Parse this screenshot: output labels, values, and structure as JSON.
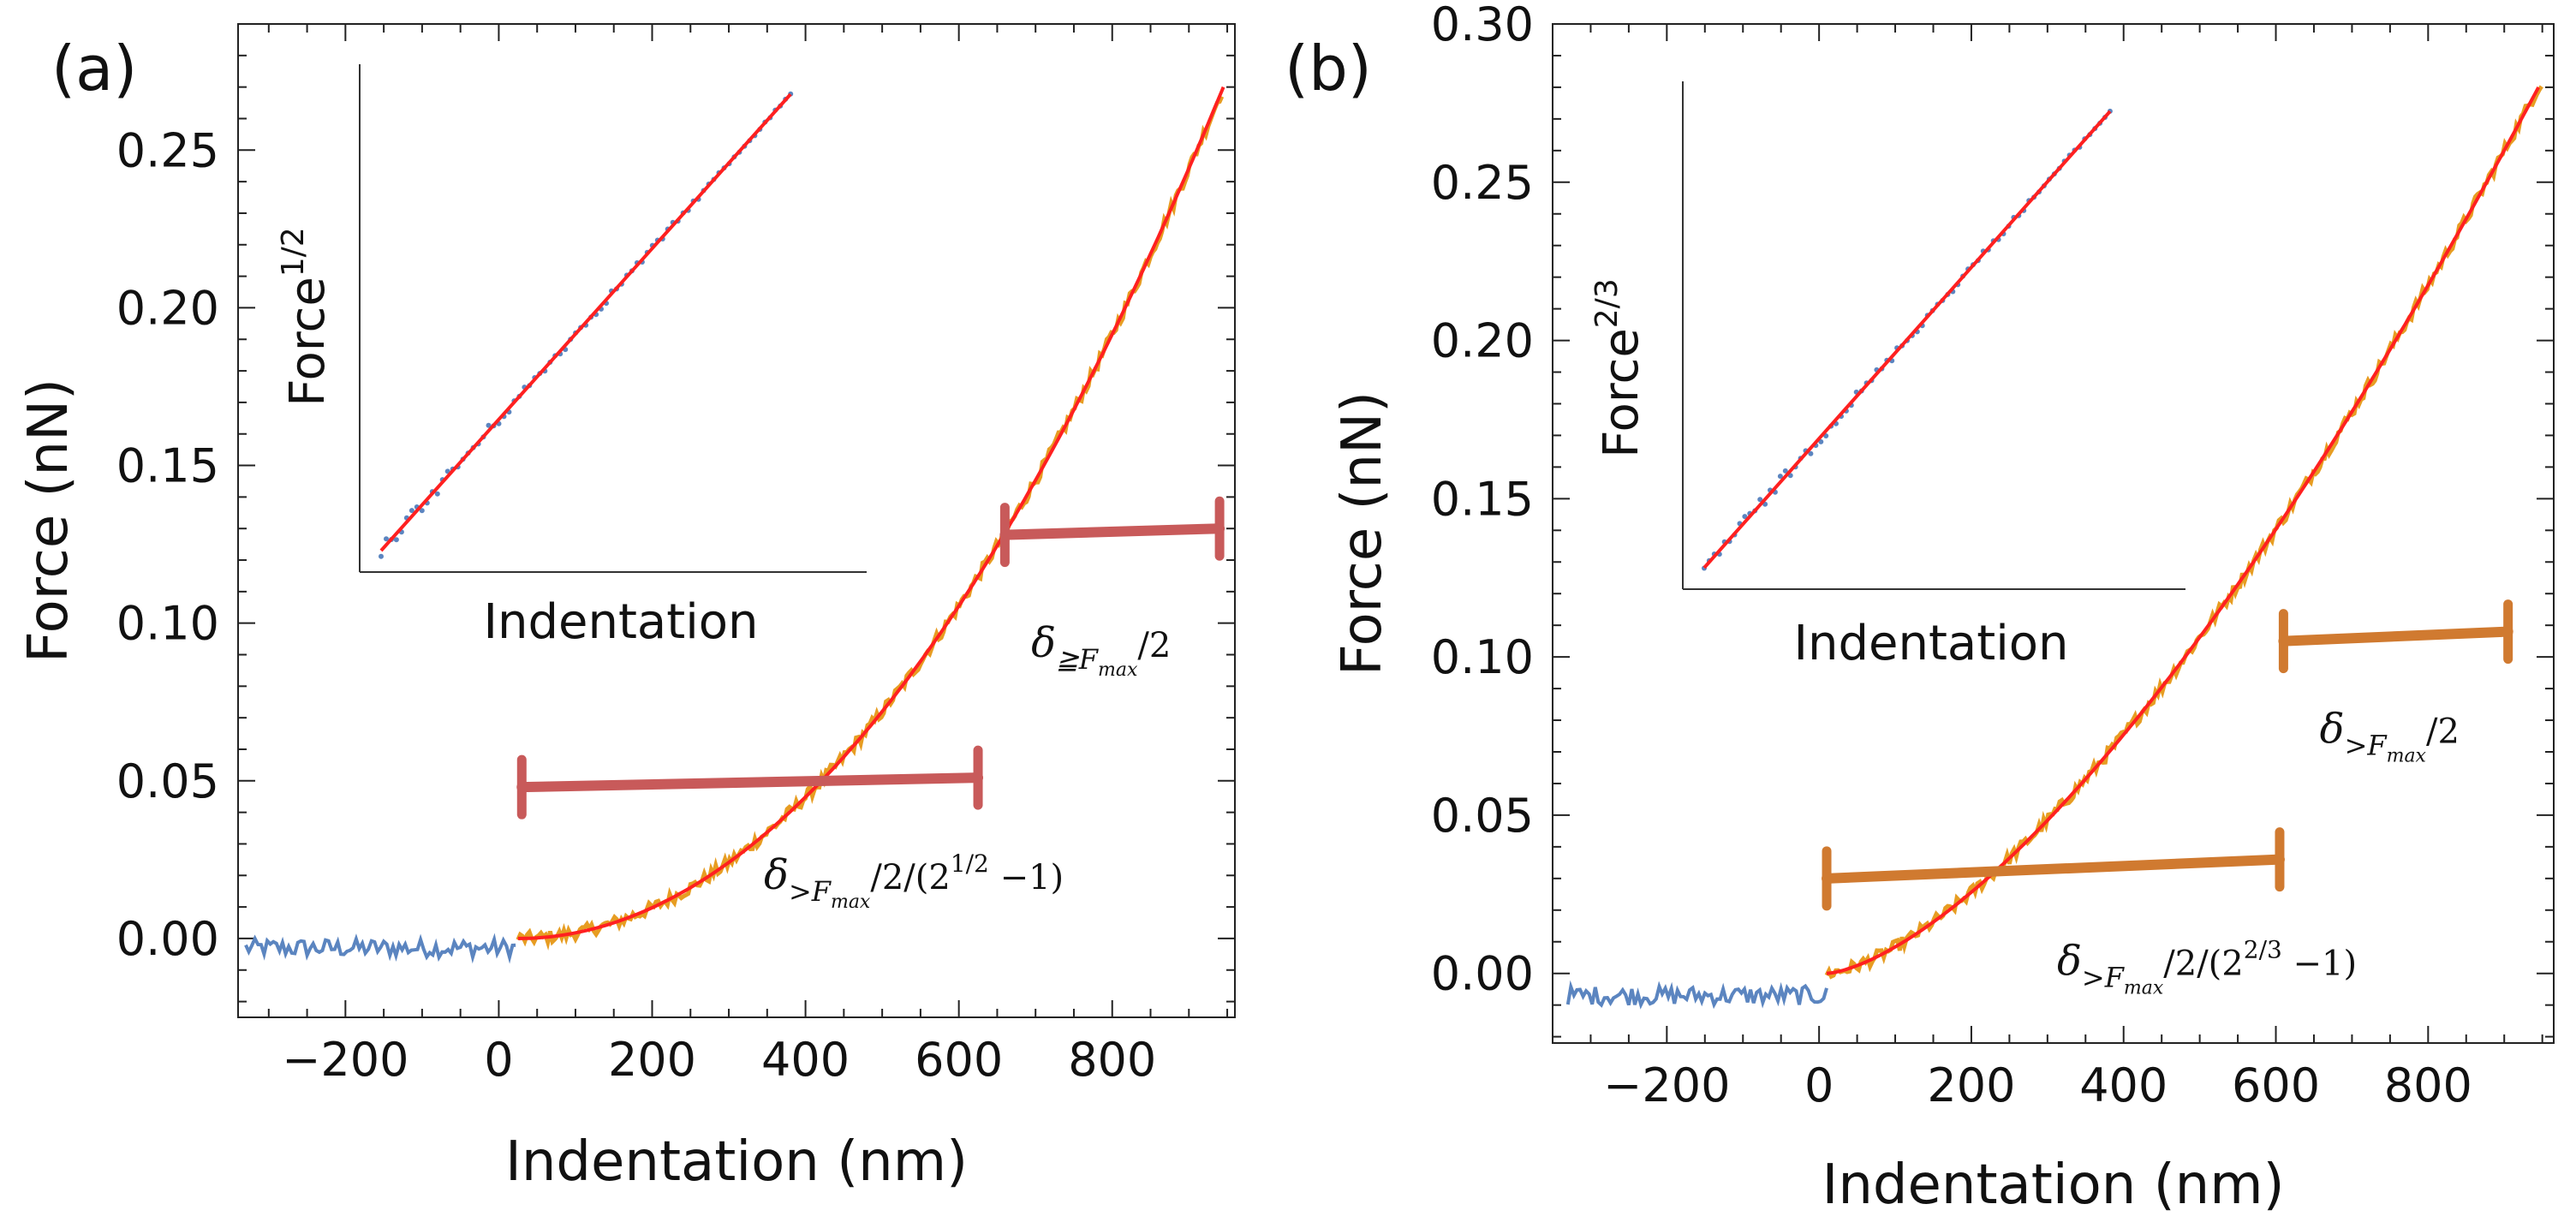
{
  "chart_data": [
    {
      "panel_label": "(a)",
      "type": "scatter",
      "xlabel": "Indentation (nm)",
      "ylabel": "Force (nN)",
      "xlim": [
        -340,
        960
      ],
      "ylim": [
        -0.025,
        0.29
      ],
      "xticks": [
        -200,
        0,
        200,
        400,
        600,
        800
      ],
      "xtick_labels": [
        "−200",
        "0",
        "200",
        "400",
        "600",
        "800"
      ],
      "yticks": [
        0.0,
        0.05,
        0.1,
        0.15,
        0.2,
        0.25
      ],
      "ytick_labels": [
        "0.00",
        "0.05",
        "0.10",
        "0.15",
        "0.20",
        "0.25"
      ],
      "series": [
        {
          "name": "pre-contact data",
          "color": "#5b85c0",
          "x_range": [
            -330,
            25
          ],
          "baseline": -0.003
        },
        {
          "name": "contact data",
          "color": "#e79d22",
          "x_range": [
            25,
            945
          ]
        },
        {
          "name": "power-law fit",
          "color": "#ff2020",
          "exponent": 2,
          "contact_point": 25,
          "x_range": [
            25,
            945
          ],
          "y_end": 0.27
        }
      ],
      "scale_bars": [
        {
          "name": "long",
          "color": "#c85a5a",
          "x": [
            30,
            625
          ],
          "y": [
            0.048,
            0.051
          ],
          "label_main": "δ",
          "label_sub": ">F",
          "label_sub2": "max",
          "label_tail": "/2/(2",
          "label_sup": "1/2",
          "label_end": " −1)"
        },
        {
          "name": "short",
          "color": "#c85a5a",
          "x": [
            660,
            940
          ],
          "y": [
            0.128,
            0.13
          ],
          "label_main": "δ",
          "label_sub": "≧F",
          "label_sub2": "max",
          "label_tail": "/2"
        }
      ],
      "inset": {
        "ylabel_base": "Force",
        "ylabel_sup": "1/2",
        "xlabel": "Indentation",
        "fit_color": "#ff2020",
        "data_color": "#5b85c0"
      }
    },
    {
      "panel_label": "(b)",
      "type": "scatter",
      "xlabel": "Indentation (nm)",
      "ylabel": "Force (nN)",
      "xlim": [
        -350,
        965
      ],
      "ylim": [
        -0.022,
        0.3
      ],
      "xticks": [
        -200,
        0,
        200,
        400,
        600,
        800
      ],
      "xtick_labels": [
        "−200",
        "0",
        "200",
        "400",
        "600",
        "800"
      ],
      "yticks": [
        0.0,
        0.05,
        0.1,
        0.15,
        0.2,
        0.25,
        0.3
      ],
      "ytick_labels": [
        "0.00",
        "0.05",
        "0.10",
        "0.15",
        "0.20",
        "0.25",
        "0.30"
      ],
      "series": [
        {
          "name": "pre-contact data",
          "color": "#5b85c0",
          "x_range": [
            -330,
            10
          ],
          "baseline": -0.007
        },
        {
          "name": "contact data",
          "color": "#e79d22",
          "x_range": [
            10,
            950
          ]
        },
        {
          "name": "power-law fit",
          "color": "#ff2020",
          "exponent": 1.5,
          "contact_point": 10,
          "x_range": [
            10,
            945
          ],
          "y_end": 0.28
        }
      ],
      "scale_bars": [
        {
          "name": "long",
          "color": "#d07a30",
          "x": [
            10,
            605
          ],
          "y": [
            0.03,
            0.036
          ],
          "label_main": "δ",
          "label_sub": ">F",
          "label_sub2": "max",
          "label_tail": "/2/(2",
          "label_sup": "2/3",
          "label_end": " −1)"
        },
        {
          "name": "short",
          "color": "#d07a30",
          "x": [
            610,
            905
          ],
          "y": [
            0.105,
            0.108
          ],
          "label_main": "δ",
          "label_sub": ">F",
          "label_sub2": "max",
          "label_tail": "/2"
        }
      ],
      "inset": {
        "ylabel_base": "Force",
        "ylabel_sup": "2/3",
        "xlabel": "Indentation",
        "fit_color": "#ff2020",
        "data_color": "#5b85c0"
      }
    }
  ]
}
